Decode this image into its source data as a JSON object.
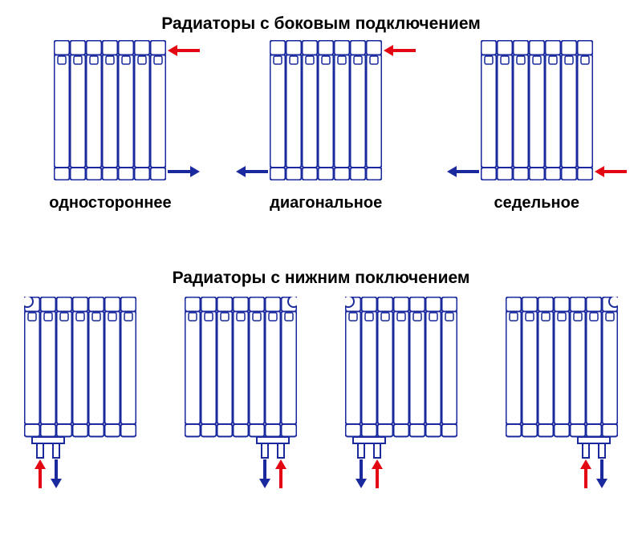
{
  "titles": {
    "side": "Радиаторы с боковым подключением",
    "bottom": "Радиаторы с нижним поключением"
  },
  "colors": {
    "hot": "#e30613",
    "cold": "#1a2a9e",
    "outline": "#1a2a9e",
    "inner_line": "#1a2a9e",
    "background": "#ffffff",
    "text": "#000000"
  },
  "radiator": {
    "sections": 7,
    "width": 140,
    "height": 175,
    "stroke_width": 2,
    "section_width": 20,
    "top_cap_height": 18,
    "bottom_cap_height": 16,
    "notch_height": 10
  },
  "top_row": [
    {
      "caption": "одностороннее",
      "arrows": [
        {
          "pos": "top-right",
          "dir": "left",
          "color": "hot"
        },
        {
          "pos": "bottom-right",
          "dir": "right",
          "color": "cold"
        }
      ]
    },
    {
      "caption": "диагональное",
      "arrows": [
        {
          "pos": "top-right",
          "dir": "left",
          "color": "hot"
        },
        {
          "pos": "bottom-left",
          "dir": "left",
          "color": "cold"
        }
      ]
    },
    {
      "caption": "седельное",
      "arrows": [
        {
          "pos": "bottom-right",
          "dir": "left",
          "color": "hot"
        },
        {
          "pos": "bottom-left",
          "dir": "left",
          "color": "cold"
        }
      ]
    }
  ],
  "bottom_row": [
    {
      "valve_side": "left",
      "arrows": [
        {
          "slot": 0,
          "dir": "up",
          "color": "hot"
        },
        {
          "slot": 1,
          "dir": "down",
          "color": "cold"
        }
      ]
    },
    {
      "valve_side": "right",
      "arrows": [
        {
          "slot": 0,
          "dir": "down",
          "color": "cold"
        },
        {
          "slot": 1,
          "dir": "up",
          "color": "hot"
        }
      ]
    },
    {
      "valve_side": "left",
      "arrows": [
        {
          "slot": 0,
          "dir": "down",
          "color": "cold"
        },
        {
          "slot": 1,
          "dir": "up",
          "color": "hot"
        }
      ]
    },
    {
      "valve_side": "right",
      "arrows": [
        {
          "slot": 0,
          "dir": "up",
          "color": "hot"
        },
        {
          "slot": 1,
          "dir": "down",
          "color": "cold"
        }
      ]
    }
  ],
  "title_fontsize": 21,
  "caption_fontsize": 20,
  "arrow": {
    "shaft_len_h": 28,
    "shaft_len_v": 24,
    "shaft_thick": 4,
    "head": 7
  }
}
